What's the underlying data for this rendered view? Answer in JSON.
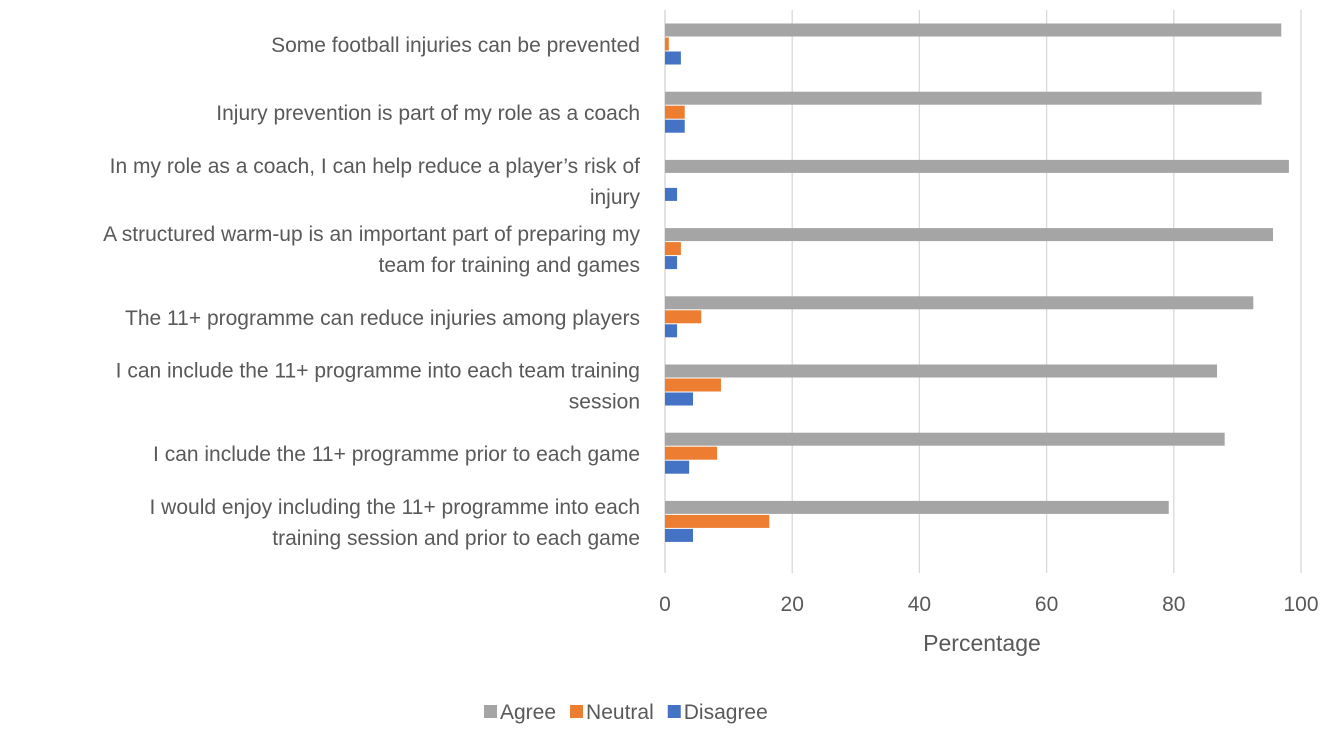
{
  "chart_data": {
    "type": "bar",
    "orientation": "horizontal",
    "categories": [
      [
        "Some football injuries can be prevented"
      ],
      [
        "Injury prevention is part of my role as a coach"
      ],
      [
        "In my role as a coach, I can help reduce a player’s risk of",
        "injury"
      ],
      [
        "A structured warm-up is an important part of preparing my",
        "team for training and games"
      ],
      [
        "The 11+ programme can reduce injuries among players"
      ],
      [
        "I can include the 11+ programme into each team training",
        "session"
      ],
      [
        "I can include the 11+ programme prior to each game"
      ],
      [
        "I would enjoy including the 11+ programme into each",
        "training session and prior to each game"
      ]
    ],
    "series": [
      {
        "name": "Agree",
        "color": "#A5A5A5",
        "values": [
          96.9,
          93.8,
          98.1,
          95.6,
          92.5,
          86.8,
          88.0,
          79.2
        ]
      },
      {
        "name": "Neutral",
        "color": "#ED7D31",
        "values": [
          0.6,
          3.1,
          0,
          2.5,
          5.7,
          8.8,
          8.2,
          16.4
        ]
      },
      {
        "name": "Disagree",
        "color": "#4472C4",
        "values": [
          2.5,
          3.1,
          1.9,
          1.9,
          1.9,
          4.4,
          3.8,
          4.4
        ]
      }
    ],
    "xlim": [
      0,
      100
    ],
    "xticks": [
      "0",
      "20",
      "40",
      "60",
      "80",
      "100"
    ],
    "xlabel": "Percentage",
    "ylabel": "",
    "grid": true,
    "legend_position": "bottom"
  }
}
